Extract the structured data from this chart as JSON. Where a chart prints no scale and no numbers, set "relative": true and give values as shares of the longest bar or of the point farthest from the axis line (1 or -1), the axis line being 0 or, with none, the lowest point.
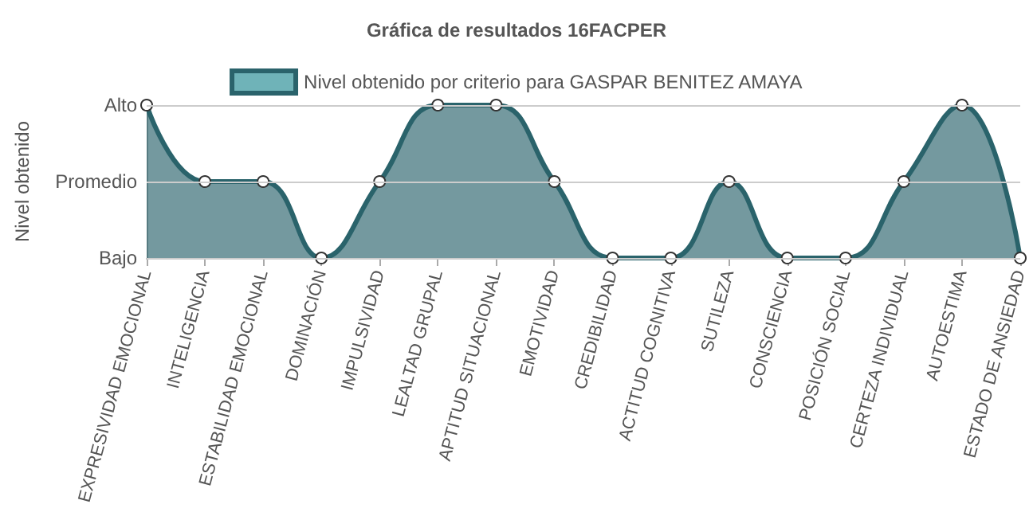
{
  "chart_data": {
    "type": "area",
    "title": "Gráfica de resultados 16FACPER",
    "ylabel": "Nivel obtenido",
    "relative": true,
    "categories": [
      "EXPRESIVIDAD EMOCIONAL",
      "INTELIGENCIA",
      "ESTABILIDAD EMOCIONAL",
      "DOMINACIÓN",
      "IMPULSIVIDAD",
      "LEALTAD GRUPAL",
      "APTITUD SITUACIONAL",
      "EMOTIVIDAD",
      "CREDIBILIDAD",
      "ACTITUD COGNITIVA",
      "SUTILEZA",
      "CONSCIENCIA",
      "POSICIÓN SOCIAL",
      "CERTEZA INDIVIDUAL",
      "AUTOESTIMA",
      "ESTADO DE ANSIEDAD"
    ],
    "series": [
      {
        "name": "Nivel obtenido por criterio para GASPAR BENITEZ AMAYA",
        "color": "#2a636b",
        "values": [
          1,
          0.5,
          0.5,
          0,
          0.5,
          1,
          1,
          0.5,
          0,
          0,
          0.5,
          0,
          0,
          0.5,
          1,
          0
        ]
      }
    ],
    "ref_lines": [
      {
        "axis": "y",
        "value": 1,
        "label": "Alto",
        "color": "#cccccc"
      },
      {
        "axis": "y",
        "value": 0.5,
        "label": "Promedio",
        "color": "#cccccc"
      },
      {
        "axis": "y",
        "value": 0,
        "label": "Bajo",
        "color": "#cccccc"
      }
    ],
    "legend": "top",
    "marker": "circle",
    "line_style": "solid"
  }
}
